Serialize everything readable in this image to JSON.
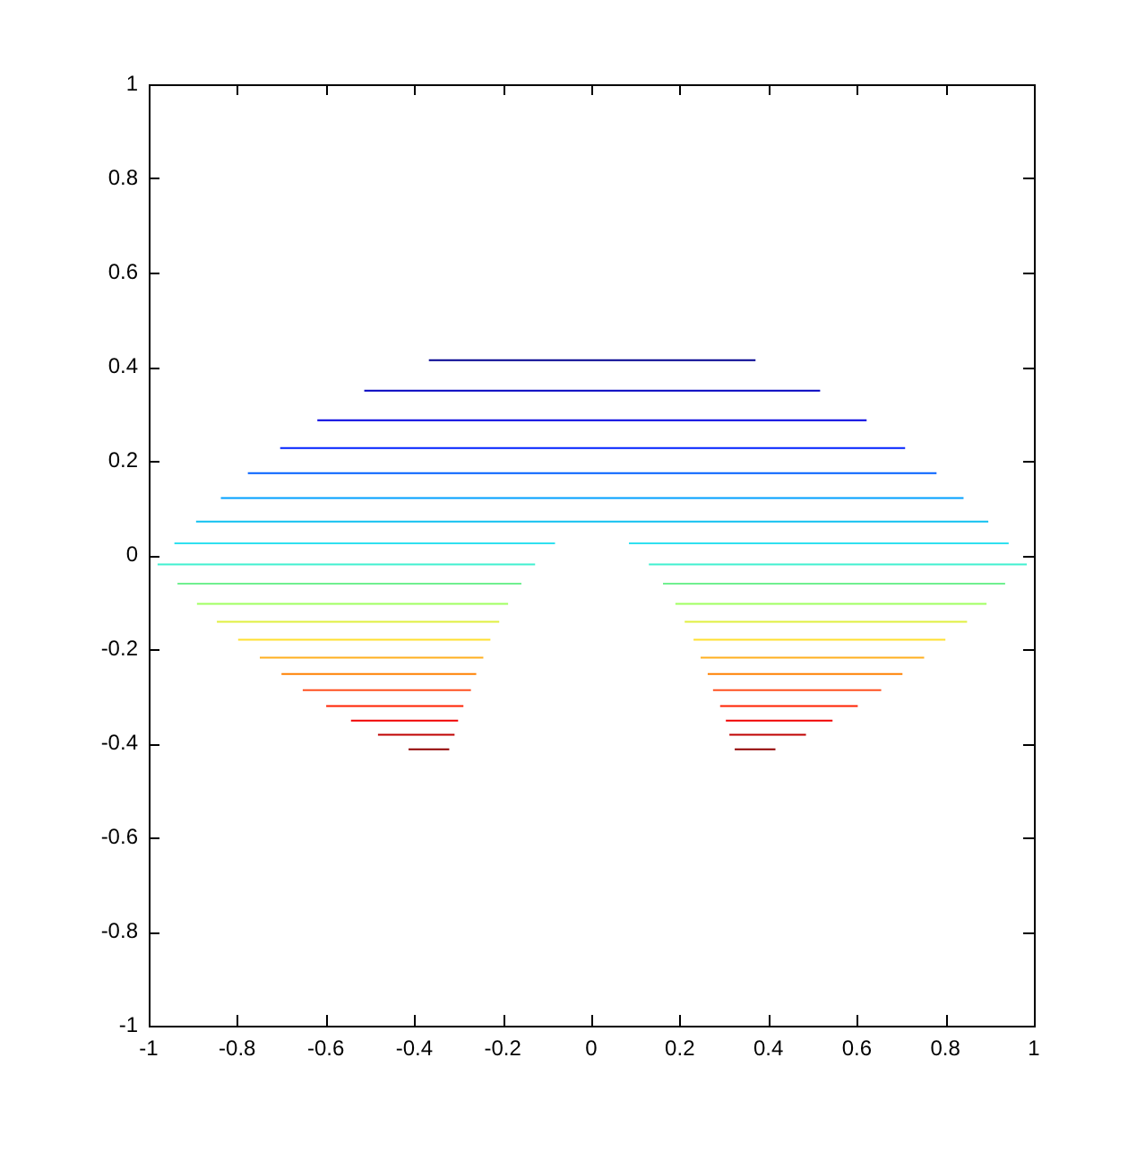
{
  "chart_data": {
    "type": "line",
    "marker": "none",
    "line_style": "solid",
    "grid": false,
    "legend": false,
    "xlim": [
      -1,
      1
    ],
    "xticks": [
      -1,
      -0.8,
      -0.6,
      -0.4,
      -0.2,
      0,
      0.2,
      0.4,
      0.6,
      0.8,
      1
    ],
    "ylim": [
      -1,
      1
    ],
    "yticks": [
      -1,
      -0.8,
      -0.6,
      -0.4,
      -0.2,
      0,
      0.2,
      0.4,
      0.6,
      0.8,
      1
    ],
    "series": [
      {
        "color": "#00008f",
        "x": [
          -0.367,
          0.371
        ],
        "values": [
          0.414,
          0.414
        ]
      },
      {
        "color": "#0000c0",
        "x": [
          -0.513,
          0.517
        ],
        "values": [
          0.349,
          0.349
        ]
      },
      {
        "color": "#0000e0",
        "x": [
          -0.619,
          0.622
        ],
        "values": [
          0.286,
          0.286
        ]
      },
      {
        "color": "#0020ff",
        "x": [
          -0.703,
          0.709
        ],
        "values": [
          0.227,
          0.227
        ]
      },
      {
        "color": "#0060ff",
        "x": [
          -0.776,
          0.78
        ],
        "values": [
          0.174,
          0.174
        ]
      },
      {
        "color": "#00a0ff",
        "x": [
          -0.837,
          0.841
        ],
        "values": [
          0.121,
          0.121
        ]
      },
      {
        "color": "#10c0f0",
        "x": [
          -0.893,
          0.897
        ],
        "values": [
          0.071,
          0.071
        ]
      },
      {
        "color": "#30e0f0",
        "x": [
          -0.942,
          -0.082
        ],
        "values": [
          0.025,
          0.025
        ]
      },
      {
        "color": "#30e0f0",
        "x": [
          0.085,
          0.943
        ],
        "values": [
          0.025,
          0.025
        ]
      },
      {
        "color": "#40f0d0",
        "x": [
          -0.98,
          -0.127
        ],
        "values": [
          -0.02,
          -0.02
        ]
      },
      {
        "color": "#40f0d0",
        "x": [
          0.13,
          0.984
        ],
        "values": [
          -0.02,
          -0.02
        ]
      },
      {
        "color": "#70f090",
        "x": [
          -0.935,
          -0.158
        ],
        "values": [
          -0.061,
          -0.061
        ]
      },
      {
        "color": "#70f090",
        "x": [
          0.162,
          0.935
        ],
        "values": [
          -0.061,
          -0.061
        ]
      },
      {
        "color": "#a0ff60",
        "x": [
          -0.891,
          -0.188
        ],
        "values": [
          -0.104,
          -0.104
        ]
      },
      {
        "color": "#a0ff60",
        "x": [
          0.19,
          0.893
        ],
        "values": [
          -0.104,
          -0.104
        ]
      },
      {
        "color": "#e0f040",
        "x": [
          -0.846,
          -0.208
        ],
        "values": [
          -0.142,
          -0.142
        ]
      },
      {
        "color": "#e0f040",
        "x": [
          0.211,
          0.849
        ],
        "values": [
          -0.142,
          -0.142
        ]
      },
      {
        "color": "#ffe030",
        "x": [
          -0.798,
          -0.228
        ],
        "values": [
          -0.18,
          -0.18
        ]
      },
      {
        "color": "#ffe030",
        "x": [
          0.231,
          0.8
        ],
        "values": [
          -0.18,
          -0.18
        ]
      },
      {
        "color": "#ffb020",
        "x": [
          -0.749,
          -0.244
        ],
        "values": [
          -0.218,
          -0.218
        ]
      },
      {
        "color": "#ffb020",
        "x": [
          0.247,
          0.752
        ],
        "values": [
          -0.218,
          -0.218
        ]
      },
      {
        "color": "#ff8000",
        "x": [
          -0.7,
          -0.26
        ],
        "values": [
          -0.253,
          -0.253
        ]
      },
      {
        "color": "#ff8000",
        "x": [
          0.263,
          0.703
        ],
        "values": [
          -0.253,
          -0.253
        ]
      },
      {
        "color": "#ff5020",
        "x": [
          -0.652,
          -0.272
        ],
        "values": [
          -0.287,
          -0.287
        ]
      },
      {
        "color": "#ff5020",
        "x": [
          0.275,
          0.655
        ],
        "values": [
          -0.287,
          -0.287
        ]
      },
      {
        "color": "#ff2000",
        "x": [
          -0.599,
          -0.289
        ],
        "values": [
          -0.321,
          -0.321
        ]
      },
      {
        "color": "#ff2000",
        "x": [
          0.291,
          0.602
        ],
        "values": [
          -0.321,
          -0.321
        ]
      },
      {
        "color": "#f00000",
        "x": [
          -0.543,
          -0.301
        ],
        "values": [
          -0.352,
          -0.352
        ]
      },
      {
        "color": "#f00000",
        "x": [
          0.304,
          0.545
        ],
        "values": [
          -0.352,
          -0.352
        ]
      },
      {
        "color": "#c00000",
        "x": [
          -0.482,
          -0.309
        ],
        "values": [
          -0.382,
          -0.382
        ]
      },
      {
        "color": "#c00000",
        "x": [
          0.312,
          0.485
        ],
        "values": [
          -0.382,
          -0.382
        ]
      },
      {
        "color": "#900000",
        "x": [
          -0.413,
          -0.321
        ],
        "values": [
          -0.413,
          -0.413
        ]
      },
      {
        "color": "#900000",
        "x": [
          0.324,
          0.416
        ],
        "values": [
          -0.413,
          -0.413
        ]
      }
    ]
  }
}
